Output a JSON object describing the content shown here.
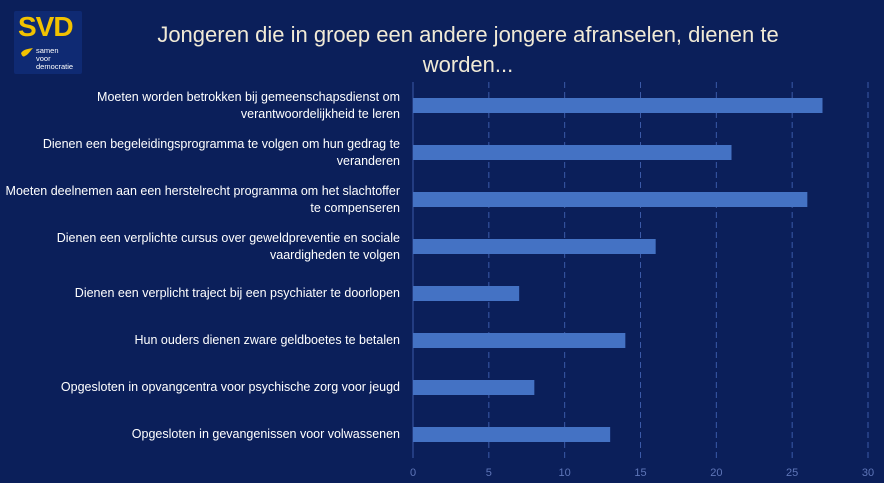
{
  "brand": {
    "name": "SVD",
    "tagline_lines": [
      "samen",
      "voor",
      "democratie"
    ],
    "color": "#f2c200"
  },
  "chart_data": {
    "type": "bar",
    "orientation": "horizontal",
    "title": "Jongeren die in groep een andere jongere afranselen, dienen te worden...",
    "categories": [
      "Moeten worden betrokken bij gemeenschapsdienst om verantwoordelijkheid te leren",
      "Dienen een begeleidingsprogramma te volgen om hun gedrag te veranderen",
      "Moeten deelnemen aan een herstelrecht programma om het slachtoffer te compenseren",
      "Dienen een verplichte cursus over geweldpreventie en sociale vaardigheden te volgen",
      "Dienen een verplicht traject bij een psychiater te doorlopen",
      "Hun ouders dienen zware geldboetes te betalen",
      "Opgesloten in opvangcentra voor psychische zorg voor jeugd",
      "Opgesloten in gevangenissen voor volwassenen"
    ],
    "values": [
      27,
      21,
      26,
      16,
      7,
      14,
      8,
      13
    ],
    "xlim": [
      0,
      30
    ],
    "xticks": [
      "0",
      "5",
      "10",
      "15",
      "20",
      "25",
      "30"
    ],
    "grid": true,
    "bar_color": "#4472c4"
  }
}
